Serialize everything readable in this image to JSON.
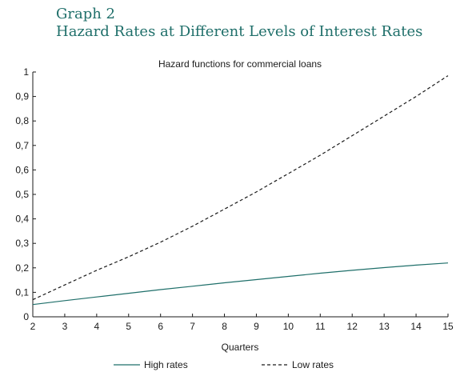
{
  "header": {
    "graph_number": "Graph 2",
    "title": "Hazard Rates at Different Levels of Interest Rates"
  },
  "chart_data": {
    "type": "line",
    "title": "Hazard functions for commercial loans",
    "xlabel": "Quarters",
    "ylabel": "",
    "xlim": [
      2,
      15
    ],
    "ylim": [
      0,
      1
    ],
    "x_ticks": [
      "2",
      "3",
      "4",
      "5",
      "6",
      "7",
      "8",
      "9",
      "10",
      "11",
      "12",
      "13",
      "14",
      "15"
    ],
    "y_ticks": [
      "0",
      "0,1",
      "0,2",
      "0,3",
      "0,4",
      "0,5",
      "0,6",
      "0,7",
      "0,8",
      "0,9",
      "1"
    ],
    "legend_position": "bottom",
    "grid": false,
    "x": [
      2,
      3,
      4,
      5,
      6,
      7,
      8,
      9,
      10,
      11,
      12,
      13,
      14,
      15
    ],
    "series": [
      {
        "name": "High rates",
        "style": "solid",
        "color": "#1f6f6a",
        "values": [
          0.05,
          0.066,
          0.081,
          0.096,
          0.111,
          0.125,
          0.139,
          0.152,
          0.165,
          0.178,
          0.19,
          0.201,
          0.211,
          0.22
        ]
      },
      {
        "name": "Low rates",
        "style": "dashed",
        "color": "#1a1a1a",
        "values": [
          0.07,
          0.13,
          0.19,
          0.245,
          0.305,
          0.37,
          0.44,
          0.51,
          0.585,
          0.66,
          0.74,
          0.82,
          0.9,
          0.985
        ]
      }
    ]
  }
}
